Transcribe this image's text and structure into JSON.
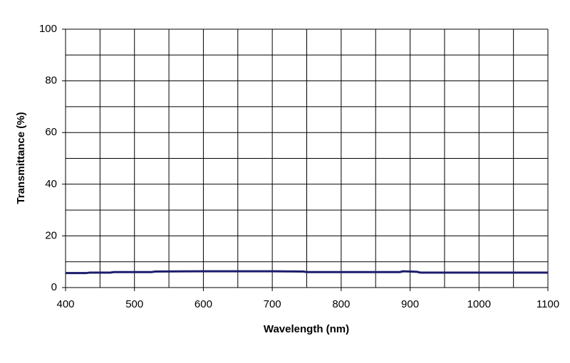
{
  "chart_data": {
    "type": "line",
    "xlabel": "Wavelength (nm)",
    "ylabel": "Transmittance (%)",
    "x": [
      400,
      430,
      435,
      465,
      470,
      525,
      530,
      600,
      700,
      745,
      750,
      800,
      885,
      890,
      900,
      910,
      915,
      1000,
      1100
    ],
    "series": [
      {
        "color": "#1c1c6b",
        "values": [
          5.6,
          5.6,
          5.8,
          5.8,
          6.0,
          6.0,
          6.2,
          6.3,
          6.3,
          6.2,
          6.0,
          6.0,
          6.0,
          6.3,
          6.2,
          6.1,
          5.8,
          5.8,
          5.8
        ]
      }
    ],
    "xlim": [
      400,
      1100
    ],
    "xticks": [
      400,
      500,
      600,
      700,
      800,
      900,
      1000,
      1100
    ],
    "xminor": [
      450,
      550,
      650,
      750,
      850,
      950,
      1050
    ],
    "ylim": [
      0,
      100
    ],
    "yticks": [
      0,
      20,
      40,
      60,
      80,
      100
    ],
    "yminor": [
      10,
      30,
      50,
      70,
      90
    ],
    "grid": true
  }
}
